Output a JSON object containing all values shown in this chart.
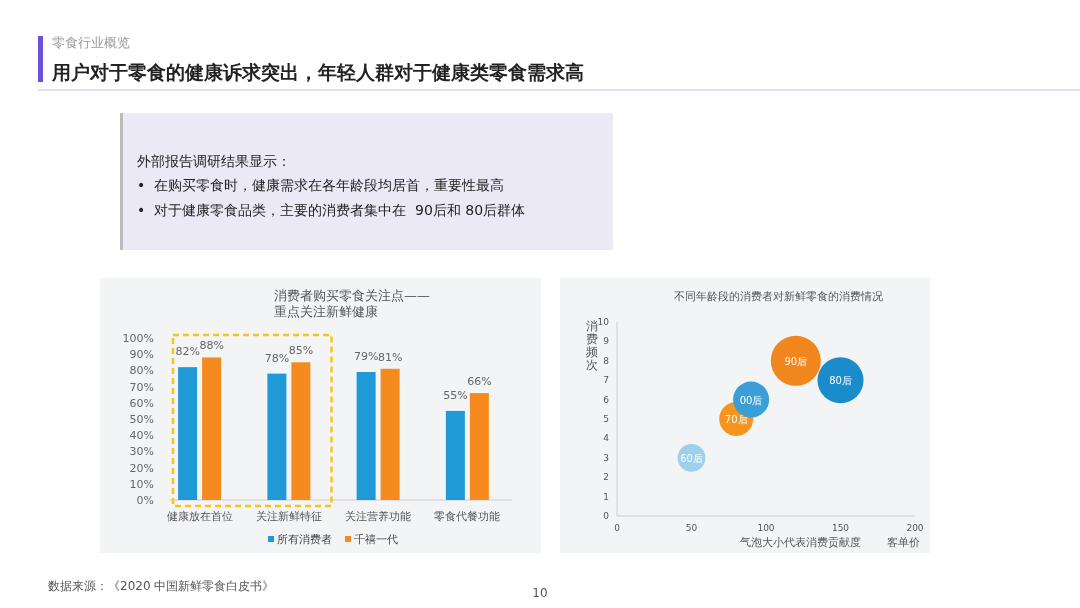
{
  "chart_data": [
    {
      "type": "other",
      "subtitle": "零食行业概览",
      "title": "用户对于零食的健康诉求突出，年轻人群对于健康类零食需求高",
      "annotations": [
        "外部报告调研结果显示：",
        "•  在购买零食时，健康需求在各年龄段均居首，重要性最高",
        "•  对于健康零食品类，主要的消费者集中在  90后和 80后群体",
        "数据来源：《2020 中国新鲜零食白皮书》",
        "10"
      ]
    },
    {
      "type": "bar",
      "title": "消费者购买零食关注点——\n重点关注新鲜健康",
      "categories": [
        "健康放在首位",
        "关注新鲜特征",
        "关注营养功能",
        "零食代餐功能"
      ],
      "series": [
        {
          "name": "所有消费者",
          "color": "#1f9ad6",
          "values": [
            82,
            78,
            79,
            55
          ],
          "value_labels": [
            "82%",
            "78%",
            "79%",
            "55%"
          ]
        },
        {
          "name": "千禧一代",
          "color": "#f58a1f",
          "values": [
            88,
            85,
            81,
            66
          ],
          "value_labels": [
            "88%",
            "85%",
            "81%",
            "66%"
          ]
        }
      ],
      "ylim": [
        0,
        100
      ],
      "yticks": [
        {
          "value": 0,
          "label": "0%"
        },
        {
          "value": 10,
          "label": "10%"
        },
        {
          "value": 20,
          "label": "20%"
        },
        {
          "value": 30,
          "label": "30%"
        },
        {
          "value": 40,
          "label": "40%"
        },
        {
          "value": 50,
          "label": "50%"
        },
        {
          "value": 60,
          "label": "60%"
        },
        {
          "value": 70,
          "label": "70%"
        },
        {
          "value": 80,
          "label": "80%"
        },
        {
          "value": 90,
          "label": "90%"
        },
        {
          "value": 100,
          "label": "100%"
        }
      ],
      "legend": "bottom"
    },
    {
      "type": "bubble",
      "title": "不同年龄段的消费者对新鲜零食的消费情况",
      "xlabel": "客单价",
      "ylabel": "消费频次",
      "annotations": [
        "气泡大小代表消费贡献度"
      ],
      "series": [
        {
          "name": "60后",
          "color": "#9dd0ea",
          "x": [
            50
          ],
          "values": [
            3
          ],
          "sizes": [
            0.31
          ]
        },
        {
          "name": "70后",
          "color": "#f5951f",
          "x": [
            80
          ],
          "values": [
            5
          ],
          "sizes": [
            0.46
          ]
        },
        {
          "name": "00后",
          "color": "#3a9fd6",
          "x": [
            90
          ],
          "values": [
            6
          ],
          "sizes": [
            0.52
          ]
        },
        {
          "name": "90后",
          "color": "#f2861e",
          "x": [
            120
          ],
          "values": [
            8
          ],
          "sizes": [
            1
          ]
        },
        {
          "name": "80后",
          "color": "#1a8ccc",
          "x": [
            150
          ],
          "values": [
            7
          ],
          "sizes": [
            0.85
          ]
        }
      ],
      "xlim": [
        0,
        200
      ],
      "xticks": [
        0,
        50,
        100,
        150,
        200
      ],
      "ylim": [
        0,
        10
      ],
      "yticks": [
        0,
        1,
        2,
        3,
        4,
        5,
        6,
        7,
        8,
        9,
        10
      ]
    }
  ]
}
